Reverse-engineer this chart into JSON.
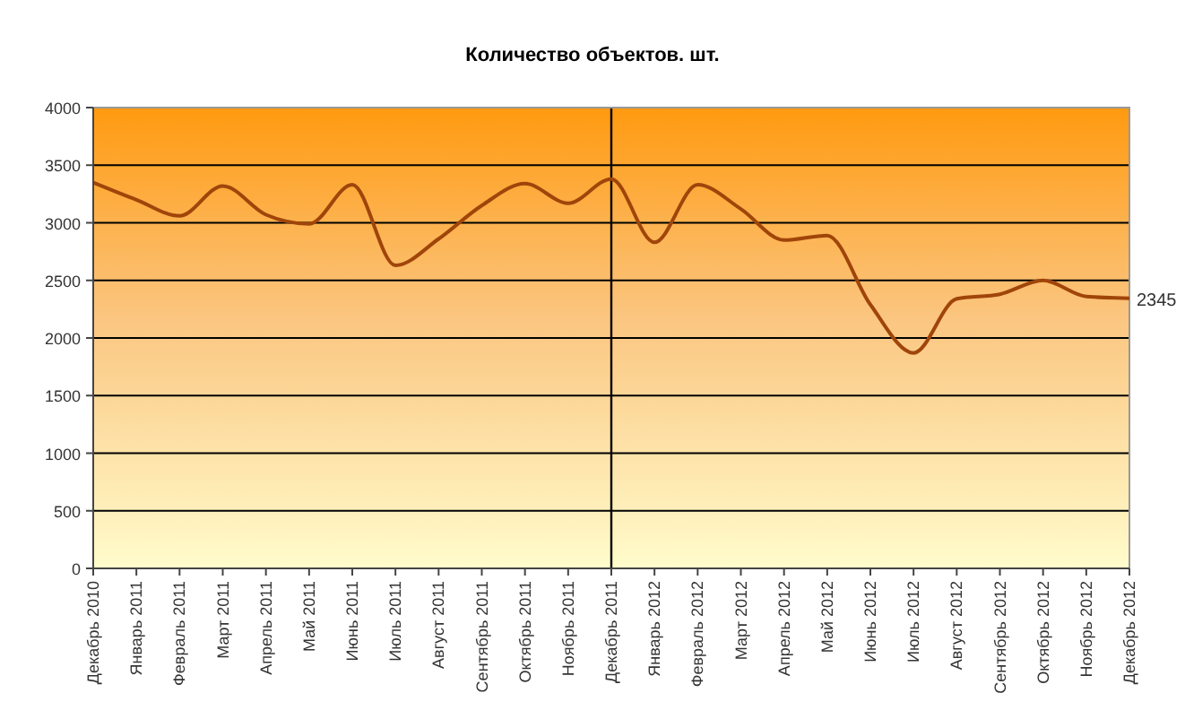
{
  "chart_data": {
    "type": "line",
    "title": "Количество объектов. шт.",
    "categories": [
      "Декабрь 2010",
      "Январь 2011",
      "Февраль 2011",
      "Март 2011",
      "Апрель 2011",
      "Май 2011",
      "Июнь 2011",
      "Июль 2011",
      "Август 2011",
      "Сентябрь 2011",
      "Октябрь 2011",
      "Ноябрь 2011",
      "Декабрь 2011",
      "Январь 2012",
      "Февраль 2012",
      "Март 2012",
      "Апрель 2012",
      "Май 2012",
      "Июнь 2012",
      "Июль 2012",
      "Август 2012",
      "Сентябрь 2012",
      "Октябрь 2012",
      "Ноябрь 2012",
      "Декабрь 2012"
    ],
    "series": [
      {
        "color": "#a0450a",
        "values": [
          3350,
          3200,
          3060,
          3320,
          3070,
          2990,
          3330,
          2630,
          2860,
          3150,
          3340,
          3170,
          3380,
          2830,
          3330,
          3120,
          2850,
          2890,
          2290,
          1870,
          2340,
          2380,
          2500,
          2360,
          2345
        ],
        "value_labels": [
          null,
          null,
          null,
          null,
          null,
          null,
          null,
          null,
          null,
          null,
          null,
          null,
          null,
          null,
          null,
          null,
          null,
          null,
          null,
          null,
          null,
          null,
          null,
          null,
          "2345"
        ]
      }
    ],
    "ylim": [
      0,
      4000
    ],
    "yticks": [
      0,
      500,
      1000,
      1500,
      2000,
      2500,
      3000,
      3500,
      4000
    ],
    "grid": "y",
    "marker": "none",
    "line_style": "solid",
    "ref_lines": [
      {
        "axis": "x",
        "value": "Декабрь 2011",
        "color": "#000000"
      }
    ]
  }
}
